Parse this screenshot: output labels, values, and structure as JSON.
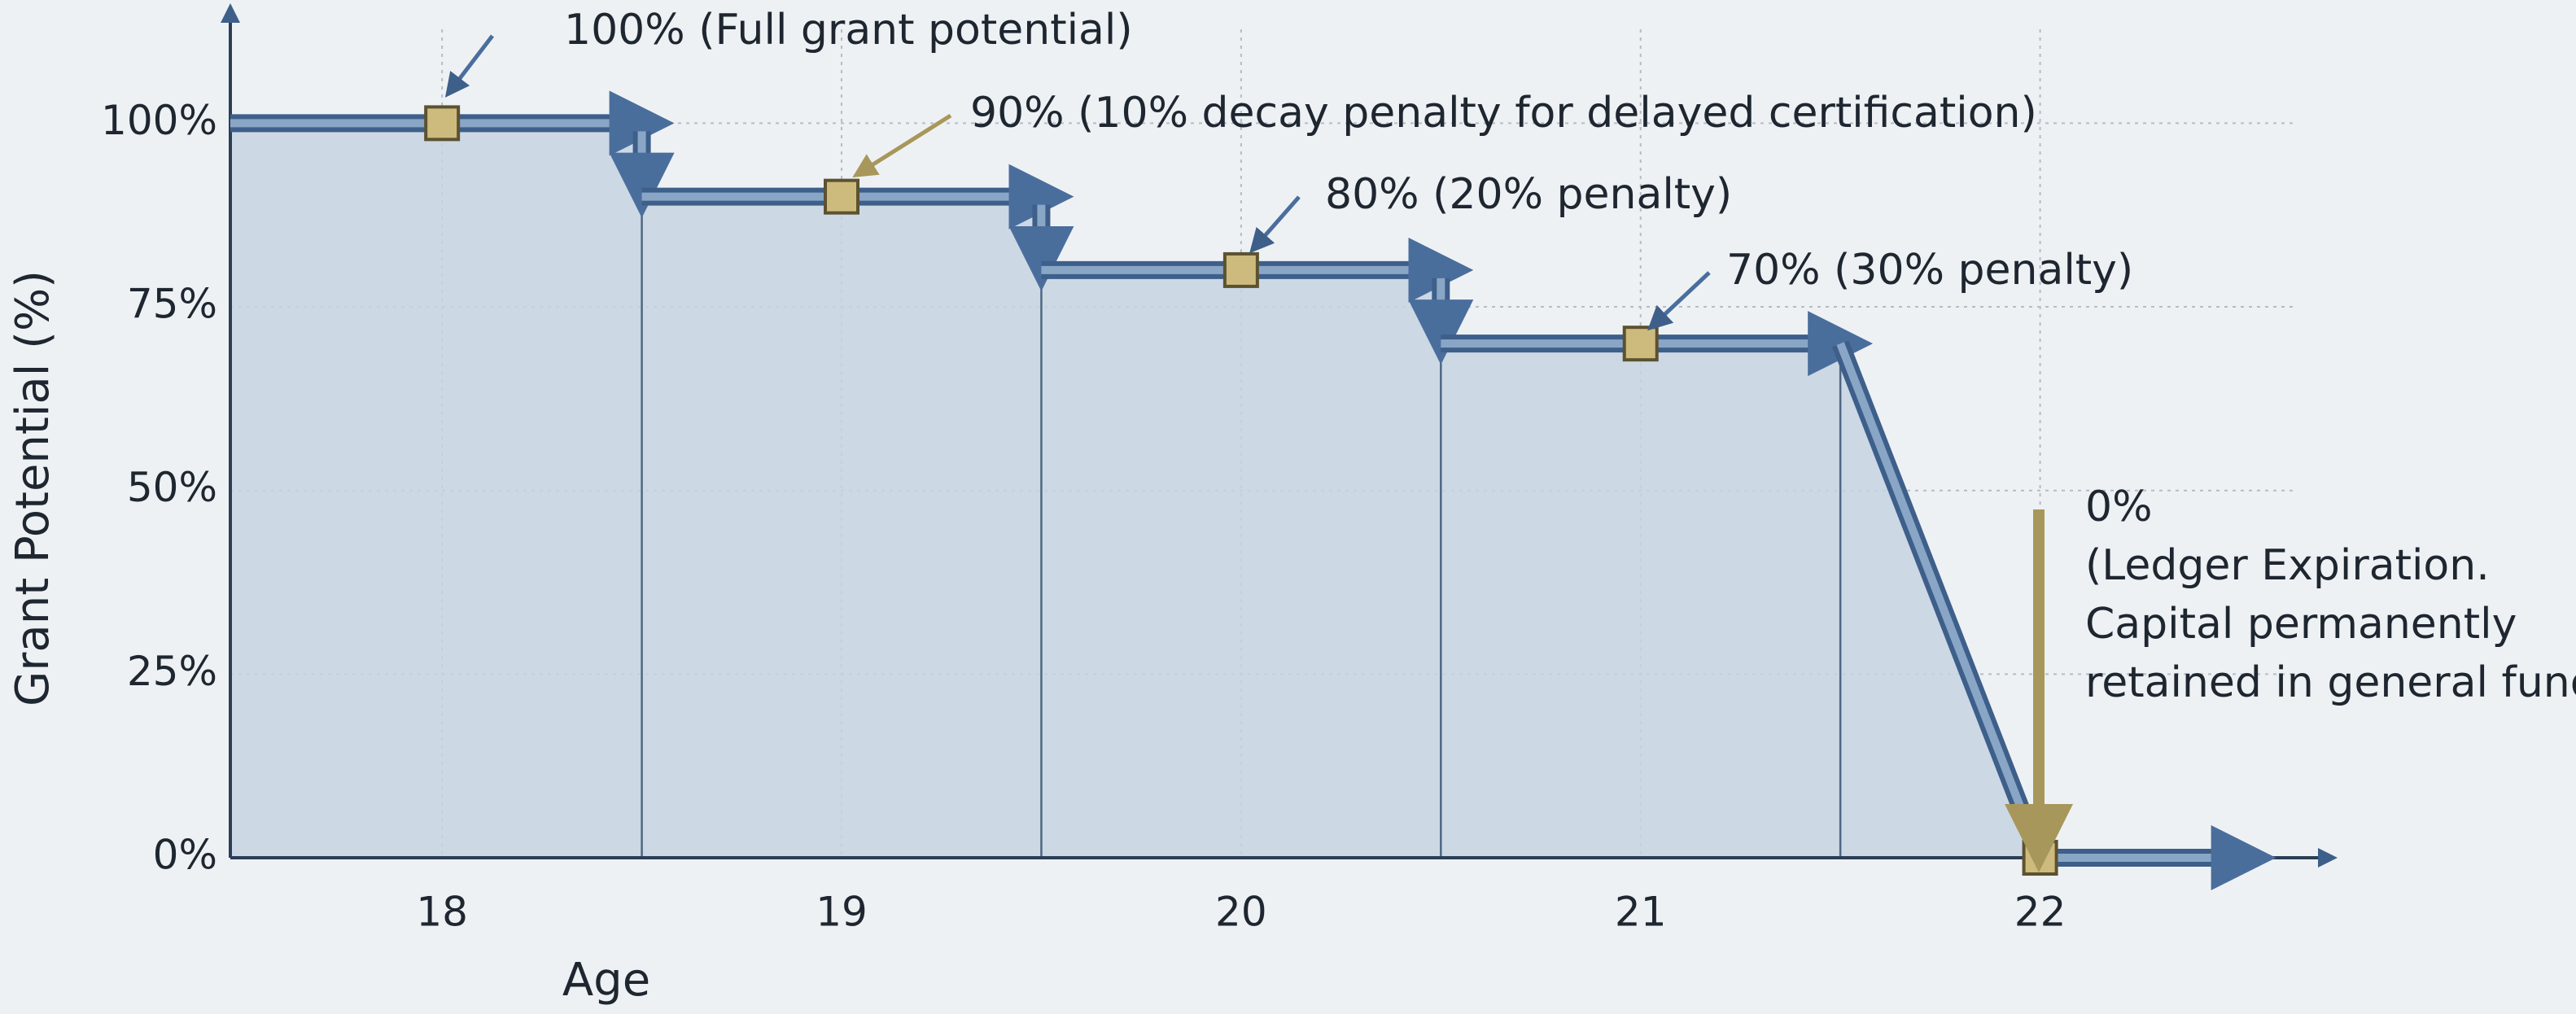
{
  "chart_data": {
    "type": "line",
    "x": [
      18,
      19,
      20,
      21,
      22
    ],
    "values": [
      100,
      90,
      80,
      70,
      0
    ],
    "color": "#4a6e9c",
    "xlabel": "Age",
    "ylabel": "Grant Potential (%)",
    "xlim": [
      17.47,
      22.72
    ],
    "ylim": [
      0,
      115
    ],
    "xticks": [
      18,
      19,
      20,
      21,
      22
    ],
    "yticks": [
      {
        "value": 0,
        "label": "0%"
      },
      {
        "value": 25,
        "label": "25%"
      },
      {
        "value": 50,
        "label": "50%"
      },
      {
        "value": 75,
        "label": "75%"
      },
      {
        "value": 100,
        "label": "100%"
      }
    ],
    "grid": true,
    "annotations": [
      {
        "text": "100% (Full grant potential)"
      },
      {
        "text": "90% (10% decay penalty for delayed certification)"
      },
      {
        "text": "80% (20% penalty)"
      },
      {
        "text": "70% (30% penalty)"
      },
      {
        "lines": [
          "0%",
          "(Ledger Expiration.",
          "Capital permanently",
          "retained in general fund)"
        ]
      }
    ]
  }
}
